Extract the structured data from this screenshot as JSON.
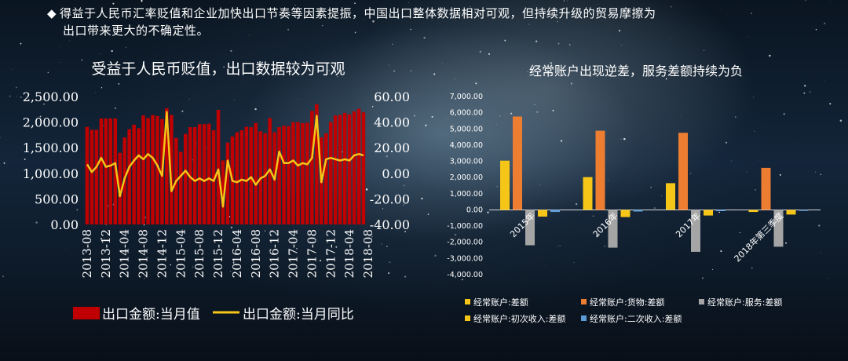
{
  "header": {
    "bullet": "◆",
    "line1": "得益于人民币汇率贬值和企业加快出口节奏等因素提振，中国出口整体数据相对可观，但持续升级的贸易摩擦为",
    "line2": "出口带来更大的不确定性。"
  },
  "colors": {
    "bar_red": "#c00000",
    "line_yellow": "#f5c518",
    "goods_orange": "#ed7d31",
    "service_gray": "#a5a5a5",
    "secondary_blue": "#5b9bd5"
  },
  "chart_data": [
    {
      "type": "bar",
      "title": "受益于人民币贬值，出口数据较为可观",
      "x_ticks": [
        "2013-08",
        "2013-12",
        "2014-04",
        "2014-08",
        "2014-12",
        "2015-04",
        "2015-08",
        "2015-12",
        "2016-04",
        "2016-08",
        "2016-12",
        "2017-04",
        "2017-08",
        "2017-12",
        "2018-04",
        "2018-08"
      ],
      "y_left_ticks": [
        "2,500.00",
        "2,000.00",
        "1,500.00",
        "1,000.00",
        "500.00",
        "0.00"
      ],
      "y_left_lim": [
        0,
        2500
      ],
      "y_right_ticks": [
        "60.00",
        "40.00",
        "20.00",
        "0.00",
        "-20.00",
        "-40.00"
      ],
      "y_right_lim": [
        -40,
        60
      ],
      "series": [
        {
          "name": "出口金额:当月值",
          "type": "bar",
          "axis": "left",
          "values": [
            1906,
            1850,
            1850,
            2070,
            2070,
            2070,
            2070,
            1400,
            1700,
            1860,
            1950,
            1880,
            2130,
            2080,
            2140,
            2120,
            2060,
            2270,
            2140,
            1690,
            1420,
            1770,
            1900,
            1900,
            1960,
            1960,
            1970,
            1840,
            2240,
            1250,
            1600,
            1720,
            1800,
            1840,
            1910,
            1900,
            1980,
            1820,
            1780,
            2080,
            1800,
            1900,
            1930,
            1920,
            2000,
            2000,
            1980,
            1990,
            2220,
            2350,
            1700,
            1780,
            2000,
            2130,
            2140,
            2180,
            2150,
            2210,
            2260,
            2190
          ]
        },
        {
          "name": "出口金额:当月同比",
          "type": "line",
          "axis": "right",
          "values": [
            7,
            1,
            5,
            12,
            5,
            6,
            8,
            -18,
            -4,
            5,
            10,
            14,
            11,
            15,
            12,
            6,
            -2,
            48,
            -14,
            -6,
            -2,
            2,
            -3,
            -6,
            -4,
            -6,
            -4,
            -6,
            3,
            -26,
            10,
            -6,
            -7,
            -5,
            -6,
            -3,
            -9,
            -4,
            -2,
            3,
            -5,
            17,
            8,
            8,
            10,
            6,
            8,
            7,
            12,
            45,
            -7,
            11,
            12,
            11,
            10,
            11,
            10,
            14,
            15,
            14
          ]
        }
      ],
      "legend": [
        "出口金额:当月值",
        "出口金额:当月同比"
      ],
      "legend_position": "bottom"
    },
    {
      "type": "bar",
      "title": "经常账户出现逆差，服务差额持续为负",
      "categories": [
        "2015年",
        "2016年",
        "2017年",
        "2018年第三季度"
      ],
      "y_ticks": [
        "7,000.00",
        "6,000.00",
        "5,000.00",
        "4,000.00",
        "3,000.00",
        "2,000.00",
        "1,000.00",
        "0.00",
        "-1,000.00",
        "-2,000.00",
        "-3,000.00",
        "-4,000.00"
      ],
      "ylim": [
        -4000,
        7000
      ],
      "series": [
        {
          "name": "经常账户:差额",
          "values": [
            3042,
            2022,
            1649,
            -128
          ]
        },
        {
          "name": "经常账户:货物:差额",
          "values": [
            5762,
            4889,
            4761,
            2594
          ]
        },
        {
          "name": "经常账户:服务:差额",
          "values": [
            -2183,
            -2331,
            -2589,
            -2272
          ]
        },
        {
          "name": "经常账户:初次收入:差额",
          "values": [
            -411,
            -440,
            -344,
            -286
          ]
        },
        {
          "name": "经常账户:二次收入:差额",
          "values": [
            -126,
            -95,
            -71,
            -56
          ]
        }
      ],
      "legend_position": "bottom"
    }
  ]
}
